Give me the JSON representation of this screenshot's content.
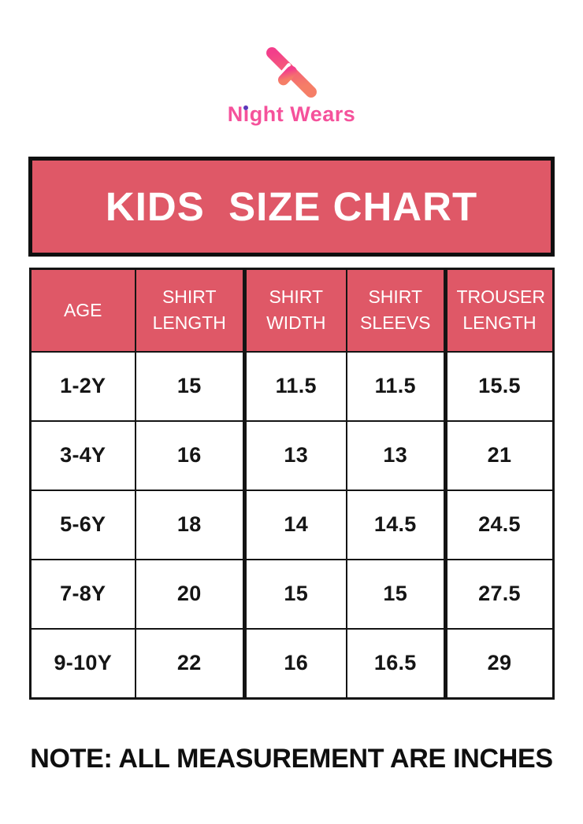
{
  "logo": {
    "icon": "night-wears-n-monogram-icon",
    "text": "Night Wears",
    "icon_gradient_top": "#F33E8B",
    "icon_gradient_bottom": "#F57E67",
    "text_color": "#F5529B",
    "i_dot_color": "#5B36BA"
  },
  "banner": {
    "title": "KIDS  SIZE CHART",
    "background": "#DF5867",
    "border_color": "#101010",
    "text_color": "#FFFFFF"
  },
  "chart_data": {
    "type": "table",
    "title": "KIDS  SIZE CHART",
    "columns": [
      "AGE",
      "SHIRT LENGTH",
      "SHIRT WIDTH",
      "SHIRT SLEEVS",
      "TROUSER LENGTH"
    ],
    "rows": [
      [
        "1-2Y",
        "15",
        "11.5",
        "11.5",
        "15.5"
      ],
      [
        "3-4Y",
        "16",
        "13",
        "13",
        "21"
      ],
      [
        "5-6Y",
        "18",
        "14",
        "14.5",
        "24.5"
      ],
      [
        "7-8Y",
        "20",
        "15",
        "15",
        "27.5"
      ],
      [
        "9-10Y",
        "22",
        "16",
        "16.5",
        "29"
      ]
    ],
    "units": "inches",
    "header_bg": "#DF5867",
    "header_text_color": "#FFFFFF"
  },
  "note": {
    "text": "NOTE: ALL MEASUREMENT ARE INCHES"
  }
}
